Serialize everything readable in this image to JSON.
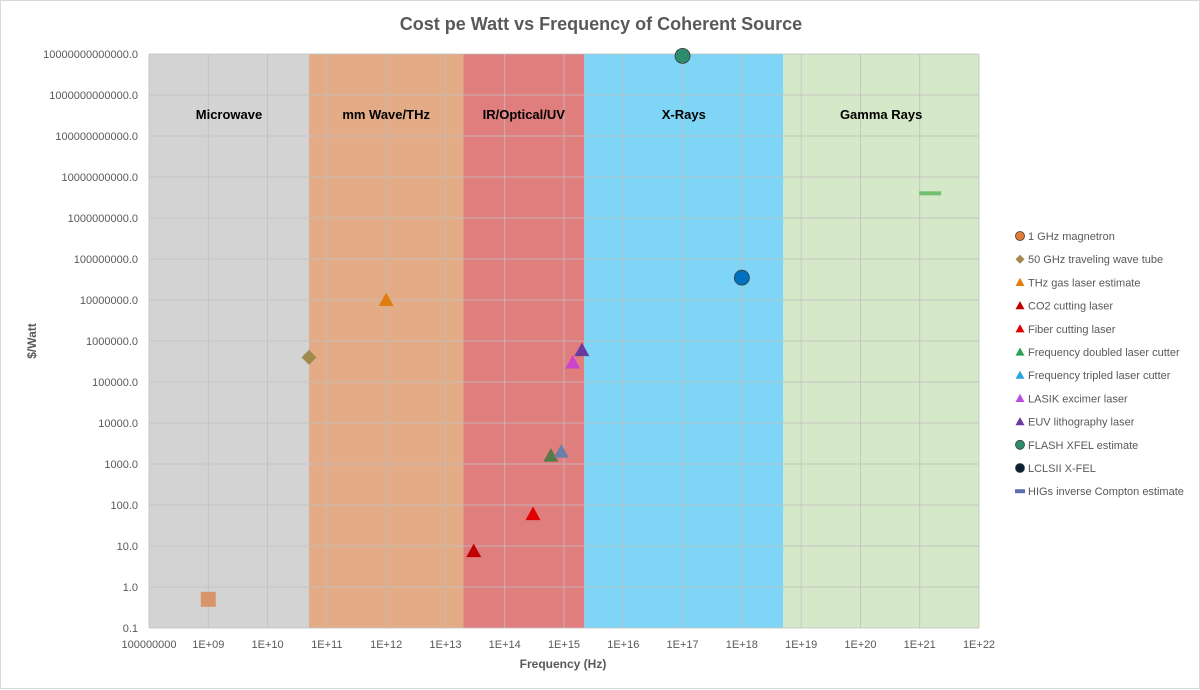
{
  "chart_data": {
    "type": "scatter",
    "title": "Cost pe Watt vs Frequency of Coherent Source",
    "xlabel": "Frequency (Hz)",
    "ylabel": "$/Watt",
    "x_scale": "log",
    "y_scale": "log",
    "xlim": [
      100000000,
      1e+22
    ],
    "ylim": [
      0.1,
      10000000000000
    ],
    "x_tick_labels": [
      "100000000",
      "1E+09",
      "1E+10",
      "1E+11",
      "1E+12",
      "1E+13",
      "1E+14",
      "1E+15",
      "1E+16",
      "1E+17",
      "1E+18",
      "1E+19",
      "1E+20",
      "1E+21",
      "1E+22"
    ],
    "y_tick_labels": [
      "0.1",
      "1.0",
      "10.0",
      "100.0",
      "1000.0",
      "10000.0",
      "100000.0",
      "1000000.0",
      "10000000.0",
      "100000000.0",
      "1000000000.0",
      "10000000000.0",
      "100000000000.0",
      "1000000000000.0",
      "10000000000000.0"
    ],
    "grid": true,
    "legend_position": "right",
    "regions": [
      {
        "label": "Microwave",
        "x_start": 100000000,
        "x_end": 50000000000,
        "color": "#d3d3d3"
      },
      {
        "label": "mm Wave/THz",
        "x_start": 50000000000,
        "x_end": 20000000000000,
        "color": "#e4ac86"
      },
      {
        "label": "IR/Optical/UV",
        "x_start": 20000000000000,
        "x_end": 2200000000000000,
        "color": "#e07d7d"
      },
      {
        "label": "X-Rays",
        "x_start": 2200000000000000,
        "x_end": 5000000000000000000,
        "color": "#7ed5f5"
      },
      {
        "label": "Gamma Rays",
        "x_start": 5000000000000000000,
        "x_end": 1e+22,
        "color": "#d5e8c8"
      }
    ],
    "series": [
      {
        "name": "1 GHz magnetron",
        "marker": "square",
        "color": "#d9956a",
        "points": [
          [
            1000000000,
            0.5
          ]
        ]
      },
      {
        "name": "50 GHz traveling wave tube",
        "marker": "diamond",
        "color": "#a08a4e",
        "points": [
          [
            50000000000,
            400000
          ]
        ]
      },
      {
        "name": "THz gas laser estimate",
        "marker": "triangle",
        "color": "#e07d10",
        "points": [
          [
            1000000000000,
            10000000
          ]
        ]
      },
      {
        "name": "CO2 cutting laser",
        "marker": "triangle",
        "color": "#c00000",
        "points": [
          [
            30000000000000,
            7.5
          ]
        ]
      },
      {
        "name": "Fiber cutting laser",
        "marker": "triangle",
        "color": "#e00000",
        "points": [
          [
            300000000000000,
            60
          ]
        ]
      },
      {
        "name": "Frequency doubled laser cutter",
        "marker": "triangle",
        "color": "#567a45",
        "points": [
          [
            600000000000000,
            1600
          ]
        ]
      },
      {
        "name": "Frequency tripled laser cutter",
        "marker": "triangle",
        "color": "#6a7ea8",
        "points": [
          [
            900000000000000,
            2000
          ]
        ]
      },
      {
        "name": "LASIK excimer laser",
        "marker": "triangle",
        "color": "#cc44cc",
        "points": [
          [
            1400000000000000,
            300000
          ]
        ]
      },
      {
        "name": "EUV lithography laser",
        "marker": "triangle",
        "color": "#6a3a9e",
        "points": [
          [
            2000000000000000,
            600000
          ]
        ]
      },
      {
        "name": "FLASH XFEL estimate",
        "marker": "circle",
        "color": "#2e8b6e",
        "points": [
          [
            100000000000000000,
            9000000000000
          ]
        ]
      },
      {
        "name": "LCLSII X-FEL",
        "marker": "circle",
        "color": "#0070c0",
        "points": [
          [
            1000000000000000000,
            35000000
          ]
        ]
      },
      {
        "name": "HIGs inverse Compton estimate",
        "marker": "dash",
        "color": "#70c070",
        "points": [
          [
            1500000000000000000000,
            4000000000
          ]
        ]
      }
    ],
    "legend_markers": [
      {
        "shape": "circle",
        "color": "#e07d3a"
      },
      {
        "shape": "diamond",
        "color": "#a08a4e"
      },
      {
        "shape": "triangle",
        "color": "#e07d10"
      },
      {
        "shape": "triangle",
        "color": "#c00000"
      },
      {
        "shape": "triangle",
        "color": "#e00000"
      },
      {
        "shape": "triangle",
        "color": "#2ea05a"
      },
      {
        "shape": "triangle",
        "color": "#2aa4e0"
      },
      {
        "shape": "triangle",
        "color": "#b84ee0"
      },
      {
        "shape": "triangle",
        "color": "#6a3a9e"
      },
      {
        "shape": "circle",
        "color": "#2e8b6e"
      },
      {
        "shape": "circle",
        "color": "#0b1f33"
      },
      {
        "shape": "dash",
        "color": "#5b6fb0"
      }
    ]
  }
}
